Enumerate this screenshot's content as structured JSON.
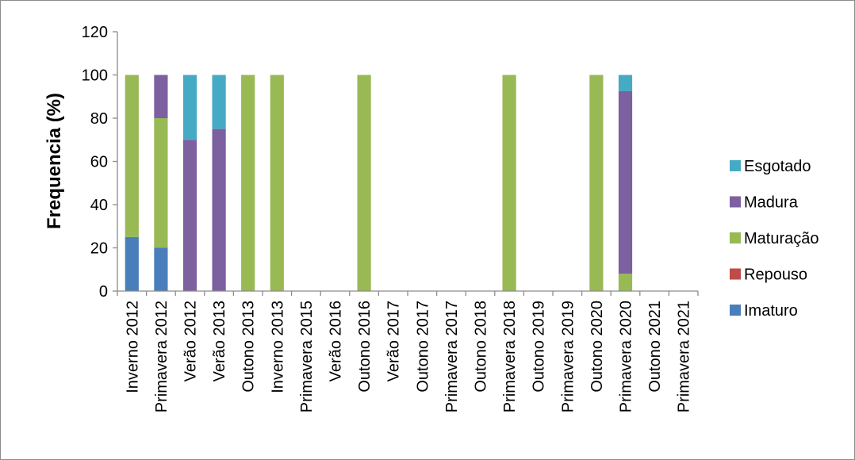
{
  "chart_data": {
    "type": "bar",
    "stacked": true,
    "title": "",
    "xlabel": "",
    "ylabel": "Frequencia (%)",
    "ylim": [
      0,
      120
    ],
    "yticks": [
      0,
      20,
      40,
      60,
      80,
      100,
      120
    ],
    "grid": false,
    "legend_position": "right",
    "categories": [
      "Inverno 2012",
      "Primavera 2012",
      "Verão 2012",
      "Verão 2013",
      "Outono 2013",
      "Inverno 2013",
      "Primavera 2015",
      "Verão 2016",
      "Outono 2016",
      "Verão 2017",
      "Outono 2017",
      "Primavera 2017",
      "Outono 2018",
      "Primavera 2018",
      "Outono 2019",
      "Primavera 2019",
      "Outono 2020",
      "Primavera 2020",
      "Outono 2021",
      "Primavera 2021"
    ],
    "series": [
      {
        "name": "Imaturo",
        "color": "#4a7ebb",
        "values": [
          25,
          20,
          0,
          0,
          0,
          0,
          0,
          0,
          0,
          0,
          0,
          0,
          0,
          0,
          0,
          0,
          0,
          0,
          0,
          0
        ]
      },
      {
        "name": "Repouso",
        "color": "#be4b48",
        "values": [
          0,
          0,
          0,
          0,
          0,
          0,
          0,
          0,
          0,
          0,
          0,
          0,
          0,
          0,
          0,
          0,
          0,
          0,
          0,
          0
        ]
      },
      {
        "name": "Maturação",
        "color": "#98b954",
        "values": [
          75,
          60,
          0,
          0,
          100,
          100,
          0,
          0,
          100,
          0,
          0,
          0,
          0,
          100,
          0,
          0,
          100,
          8,
          0,
          0
        ]
      },
      {
        "name": "Madura",
        "color": "#7d60a0",
        "values": [
          0,
          20,
          70,
          75,
          0,
          0,
          0,
          0,
          0,
          0,
          0,
          0,
          0,
          0,
          0,
          0,
          0,
          84.5,
          0,
          0
        ]
      },
      {
        "name": "Esgotado",
        "color": "#46aac5",
        "values": [
          0,
          0,
          30,
          25,
          0,
          0,
          0,
          0,
          0,
          0,
          0,
          0,
          0,
          0,
          0,
          0,
          0,
          7.5,
          0,
          0
        ]
      }
    ],
    "legend_order": [
      "Esgotado",
      "Madura",
      "Maturação",
      "Repouso",
      "Imaturo"
    ]
  }
}
